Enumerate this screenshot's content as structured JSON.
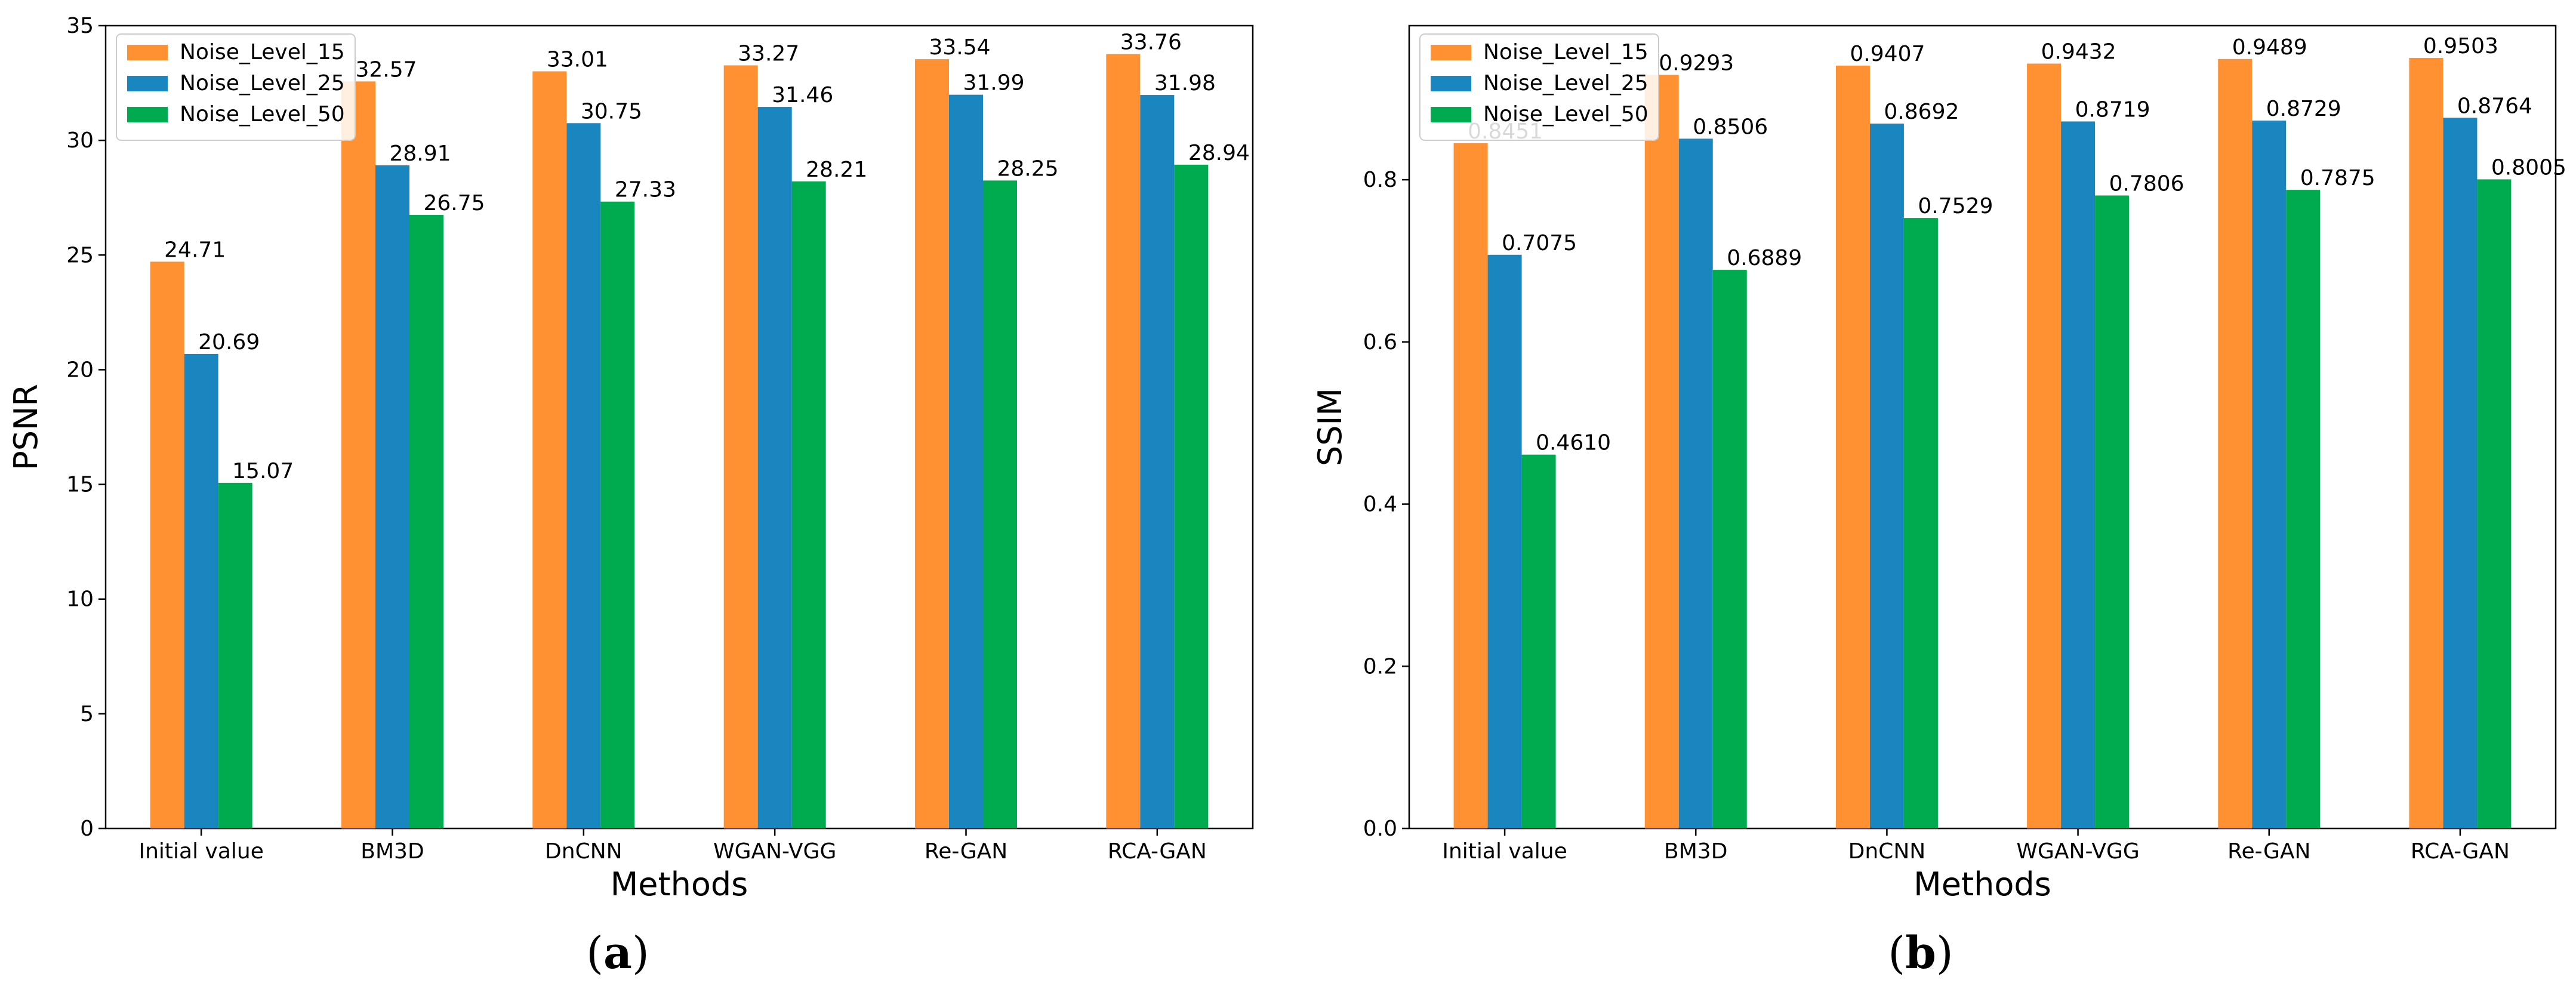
{
  "panels": [
    {
      "caption": "(a)",
      "caption_letter": "a",
      "legend_placement": "top-left"
    },
    {
      "caption": "(b)",
      "caption_letter": "b",
      "legend_placement": "top-left"
    }
  ],
  "chart_data": [
    {
      "type": "bar",
      "title": "",
      "xlabel": "Methods",
      "ylabel": "PSNR",
      "categories": [
        "Initial value",
        "BM3D",
        "DnCNN",
        "WGAN-VGG",
        "Re-GAN",
        "RCA-GAN"
      ],
      "ylim": [
        0,
        35
      ],
      "yticks": [
        "0",
        "5",
        "10",
        "15",
        "20",
        "25",
        "30",
        "35"
      ],
      "grid": false,
      "series": [
        {
          "name": "Noise_Level_15",
          "color": "#ff9133",
          "values": [
            24.71,
            32.57,
            33.01,
            33.27,
            33.54,
            33.76
          ],
          "labels": [
            "24.71",
            "32.57",
            "33.01",
            "33.27",
            "33.54",
            "33.76"
          ]
        },
        {
          "name": "Noise_Level_25",
          "color": "#1a86c0",
          "values": [
            20.69,
            28.91,
            30.75,
            31.46,
            31.99,
            31.98
          ],
          "labels": [
            "20.69",
            "28.91",
            "30.75",
            "31.46",
            "31.99",
            "31.98"
          ]
        },
        {
          "name": "Noise_Level_50",
          "color": "#00aa4f",
          "values": [
            15.07,
            26.75,
            27.33,
            28.21,
            28.25,
            28.94
          ],
          "labels": [
            "15.07",
            "26.75",
            "27.33",
            "28.21",
            "28.25",
            "28.94"
          ]
        }
      ]
    },
    {
      "type": "bar",
      "title": "",
      "xlabel": "Methods",
      "ylabel": "SSIM",
      "categories": [
        "Initial value",
        "BM3D",
        "DnCNN",
        "WGAN-VGG",
        "Re-GAN",
        "RCA-GAN"
      ],
      "ylim": [
        0,
        0.99
      ],
      "yticks": [
        "0.0",
        "0.2",
        "0.4",
        "0.6",
        "0.8"
      ],
      "grid": false,
      "series": [
        {
          "name": "Noise_Level_15",
          "color": "#ff9133",
          "values": [
            0.8451,
            0.9293,
            0.9407,
            0.9432,
            0.9489,
            0.9503
          ],
          "labels": [
            "0.8451",
            "0.9293",
            "0.9407",
            "0.9432",
            "0.9489",
            "0.9503"
          ]
        },
        {
          "name": "Noise_Level_25",
          "color": "#1a86c0",
          "values": [
            0.7075,
            0.8506,
            0.8692,
            0.8719,
            0.8729,
            0.8764
          ],
          "labels": [
            "0.7075",
            "0.8506",
            "0.8692",
            "0.8719",
            "0.8729",
            "0.8764"
          ]
        },
        {
          "name": "Noise_Level_50",
          "color": "#00aa4f",
          "values": [
            0.461,
            0.6889,
            0.7529,
            0.7806,
            0.7875,
            0.8005
          ],
          "labels": [
            "0.4610",
            "0.6889",
            "0.7529",
            "0.7806",
            "0.7875",
            "0.8005"
          ]
        }
      ]
    }
  ]
}
